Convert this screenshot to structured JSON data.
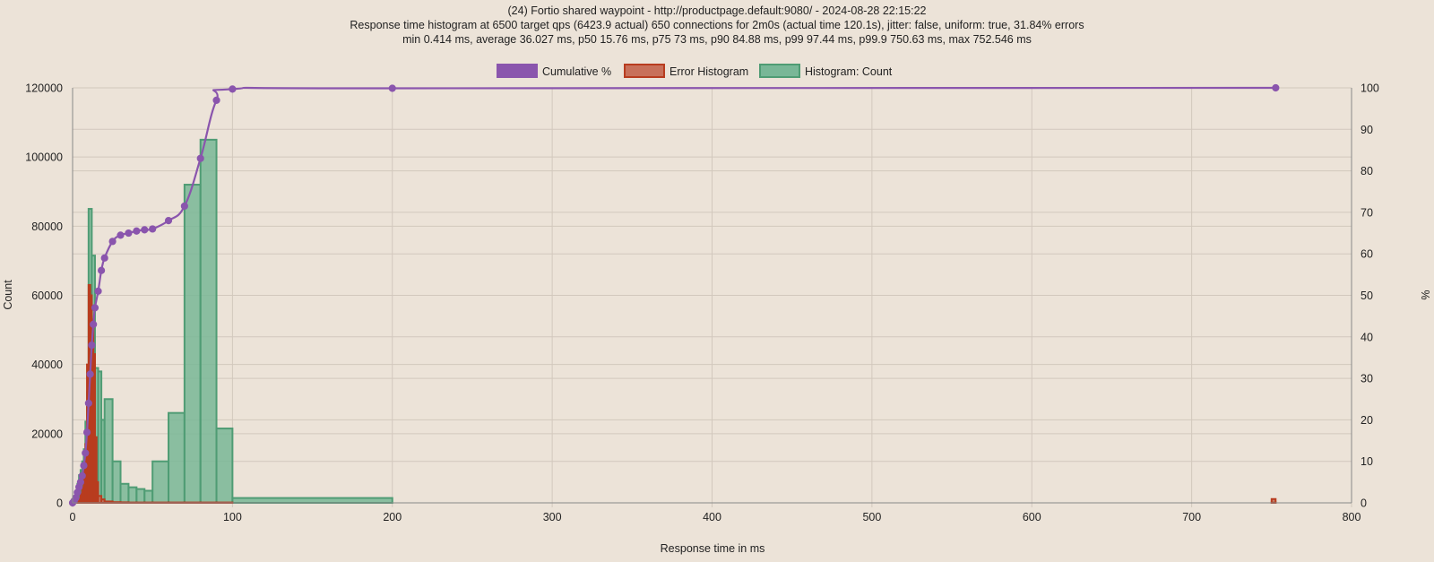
{
  "chart_data": {
    "type": "bar",
    "title": "(24) Fortio shared waypoint - http://productpage.default:9080/ - 2024-08-28 22:15:22",
    "subtitle_lines": [
      "Response time histogram at 6500 target qps (6423.9 actual) 650 connections for 2m0s (actual time 120.1s), jitter: false, uniform: true, 31.84% errors",
      "min 0.414 ms, average 36.027 ms, p50 15.76 ms, p75 73 ms, p90 84.88 ms, p99 97.44 ms, p99.9 750.63 ms, max 752.546 ms"
    ],
    "xlabel": "Response time in ms",
    "ylabel_left": "Count",
    "ylabel_right": "%",
    "xlim": [
      0,
      800
    ],
    "ylim_left": [
      0,
      120000
    ],
    "ylim_right": [
      0,
      100
    ],
    "x_ticks": [
      0,
      100,
      200,
      300,
      400,
      500,
      600,
      700,
      800
    ],
    "y_left_ticks": [
      0,
      20000,
      40000,
      60000,
      80000,
      100000,
      120000
    ],
    "y_right_ticks": [
      0,
      10,
      20,
      30,
      40,
      50,
      60,
      70,
      80,
      90,
      100
    ],
    "grid": true,
    "legend_position": "top-center",
    "colors": {
      "cumulative": "#8a55ad",
      "cumulative_fill": "#8a55ad",
      "error_stroke": "#b83c1f",
      "error_fill": "#c8705a",
      "count_stroke": "#4f9c74",
      "count_fill": "#79b797",
      "grid": "#d2c8bd",
      "axis": "#888888"
    },
    "legend": [
      {
        "key": "cumulative",
        "label": "Cumulative %"
      },
      {
        "key": "error",
        "label": "Error Histogram"
      },
      {
        "key": "count",
        "label": "Histogram: Count"
      }
    ],
    "series": [
      {
        "name": "Histogram: Count",
        "type": "step-bar",
        "bins": [
          {
            "start": 0.4,
            "end": 1,
            "count": 600
          },
          {
            "start": 1,
            "end": 2,
            "count": 1500
          },
          {
            "start": 2,
            "end": 3,
            "count": 3000
          },
          {
            "start": 3,
            "end": 4,
            "count": 5500
          },
          {
            "start": 4,
            "end": 5,
            "count": 8000
          },
          {
            "start": 5,
            "end": 6,
            "count": 9500
          },
          {
            "start": 6,
            "end": 7,
            "count": 12000
          },
          {
            "start": 7,
            "end": 8,
            "count": 15500
          },
          {
            "start": 8,
            "end": 9,
            "count": 23500
          },
          {
            "start": 9,
            "end": 10,
            "count": 32000
          },
          {
            "start": 10,
            "end": 12,
            "count": 85000
          },
          {
            "start": 12,
            "end": 14,
            "count": 71500
          },
          {
            "start": 14,
            "end": 16,
            "count": 39000
          },
          {
            "start": 16,
            "end": 18,
            "count": 38000
          },
          {
            "start": 18,
            "end": 20,
            "count": 24000
          },
          {
            "start": 20,
            "end": 25,
            "count": 30000
          },
          {
            "start": 25,
            "end": 30,
            "count": 12000
          },
          {
            "start": 30,
            "end": 35,
            "count": 5500
          },
          {
            "start": 35,
            "end": 40,
            "count": 4500
          },
          {
            "start": 40,
            "end": 45,
            "count": 4000
          },
          {
            "start": 45,
            "end": 50,
            "count": 3500
          },
          {
            "start": 50,
            "end": 60,
            "count": 12000
          },
          {
            "start": 60,
            "end": 70,
            "count": 26000
          },
          {
            "start": 70,
            "end": 80,
            "count": 92000
          },
          {
            "start": 80,
            "end": 90,
            "count": 105000
          },
          {
            "start": 90,
            "end": 100,
            "count": 21500
          },
          {
            "start": 100,
            "end": 200,
            "count": 1400
          },
          {
            "start": 750,
            "end": 752.5,
            "count": 300
          }
        ]
      },
      {
        "name": "Error Histogram",
        "type": "step-bar",
        "bins": [
          {
            "start": 0.4,
            "end": 1,
            "count": 100
          },
          {
            "start": 1,
            "end": 2,
            "count": 200
          },
          {
            "start": 2,
            "end": 3,
            "count": 400
          },
          {
            "start": 3,
            "end": 4,
            "count": 700
          },
          {
            "start": 4,
            "end": 5,
            "count": 1200
          },
          {
            "start": 5,
            "end": 6,
            "count": 2500
          },
          {
            "start": 6,
            "end": 7,
            "count": 4500
          },
          {
            "start": 7,
            "end": 8,
            "count": 9500
          },
          {
            "start": 8,
            "end": 9,
            "count": 17000
          },
          {
            "start": 9,
            "end": 10,
            "count": 40000
          },
          {
            "start": 10,
            "end": 11,
            "count": 63000
          },
          {
            "start": 11,
            "end": 12,
            "count": 60000
          },
          {
            "start": 12,
            "end": 13,
            "count": 53000
          },
          {
            "start": 13,
            "end": 14,
            "count": 43000
          },
          {
            "start": 14,
            "end": 15,
            "count": 19000
          },
          {
            "start": 15,
            "end": 16,
            "count": 6000
          },
          {
            "start": 16,
            "end": 18,
            "count": 2000
          },
          {
            "start": 18,
            "end": 20,
            "count": 1000
          },
          {
            "start": 20,
            "end": 25,
            "count": 400
          },
          {
            "start": 25,
            "end": 30,
            "count": 200
          },
          {
            "start": 30,
            "end": 35,
            "count": 150
          },
          {
            "start": 35,
            "end": 40,
            "count": 100
          },
          {
            "start": 40,
            "end": 45,
            "count": 100
          },
          {
            "start": 45,
            "end": 50,
            "count": 100
          },
          {
            "start": 50,
            "end": 60,
            "count": 100
          },
          {
            "start": 60,
            "end": 70,
            "count": 100
          },
          {
            "start": 70,
            "end": 80,
            "count": 100
          },
          {
            "start": 80,
            "end": 90,
            "count": 100
          },
          {
            "start": 90,
            "end": 100,
            "count": 100
          },
          {
            "start": 750,
            "end": 752.5,
            "count": 1100
          }
        ]
      },
      {
        "name": "Cumulative %",
        "type": "line",
        "axis": "right",
        "points": [
          {
            "x": 0,
            "y": 0
          },
          {
            "x": 1,
            "y": 0.5
          },
          {
            "x": 2,
            "y": 1.2
          },
          {
            "x": 3,
            "y": 2.5
          },
          {
            "x": 4,
            "y": 3.8
          },
          {
            "x": 5,
            "y": 5
          },
          {
            "x": 6,
            "y": 6.5
          },
          {
            "x": 7,
            "y": 9
          },
          {
            "x": 8,
            "y": 12
          },
          {
            "x": 9,
            "y": 17
          },
          {
            "x": 10,
            "y": 24
          },
          {
            "x": 11,
            "y": 31
          },
          {
            "x": 12,
            "y": 38
          },
          {
            "x": 13,
            "y": 43
          },
          {
            "x": 14,
            "y": 47
          },
          {
            "x": 16,
            "y": 51
          },
          {
            "x": 18,
            "y": 56
          },
          {
            "x": 20,
            "y": 59
          },
          {
            "x": 25,
            "y": 63
          },
          {
            "x": 30,
            "y": 64.5
          },
          {
            "x": 35,
            "y": 65
          },
          {
            "x": 40,
            "y": 65.5
          },
          {
            "x": 45,
            "y": 65.8
          },
          {
            "x": 50,
            "y": 66
          },
          {
            "x": 60,
            "y": 68
          },
          {
            "x": 70,
            "y": 71.5
          },
          {
            "x": 80,
            "y": 83
          },
          {
            "x": 90,
            "y": 97
          },
          {
            "x": 100,
            "y": 99.7
          },
          {
            "x": 200,
            "y": 99.9
          },
          {
            "x": 752.546,
            "y": 100
          }
        ]
      }
    ]
  }
}
